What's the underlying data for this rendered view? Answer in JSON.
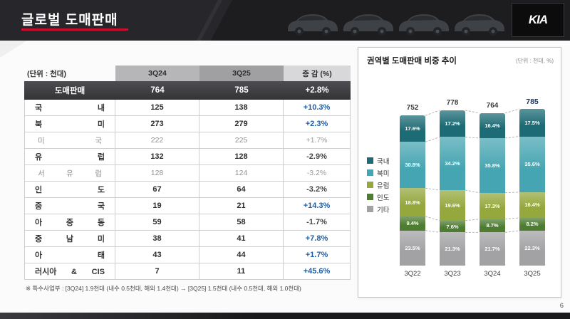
{
  "page": {
    "title": "글로벌 도매판매",
    "page_number": "6",
    "footnote": "※ 특수사업부 : [3Q24] 1.9천대 (내수 0.5천대, 해외 1.4천대) → [3Q25] 1.5천대 (내수 0.5천대, 해외 1.0천대)"
  },
  "header": {
    "brand": "KIA"
  },
  "table": {
    "unit_label": "(단위 : 천대)",
    "columns": [
      "3Q24",
      "3Q25",
      "증 감 (%)"
    ],
    "total_row": {
      "label": "도매판매",
      "q24": "764",
      "q25": "785",
      "chg": "+2.8%"
    },
    "rows": [
      {
        "label": "국 내",
        "q24": "125",
        "q25": "138",
        "chg": "+10.3%",
        "style": "pos"
      },
      {
        "label": "북 미",
        "q24": "273",
        "q25": "279",
        "chg": "+2.3%",
        "style": "pos"
      },
      {
        "label": "미 국",
        "q24": "222",
        "q25": "225",
        "chg": "+1.7%",
        "style": "sub"
      },
      {
        "label": "유 럽",
        "q24": "132",
        "q25": "128",
        "chg": "-2.9%",
        "style": "neg"
      },
      {
        "label": "서 유 럽",
        "q24": "128",
        "q25": "124",
        "chg": "-3.2%",
        "style": "sub"
      },
      {
        "label": "인 도",
        "q24": "67",
        "q25": "64",
        "chg": "-3.2%",
        "style": "neg"
      },
      {
        "label": "중 국",
        "q24": "19",
        "q25": "21",
        "chg": "+14.3%",
        "style": "pos"
      },
      {
        "label": "아 중 동",
        "q24": "59",
        "q25": "58",
        "chg": "-1.7%",
        "style": "neg"
      },
      {
        "label": "중 남 미",
        "q24": "38",
        "q25": "41",
        "chg": "+7.8%",
        "style": "pos"
      },
      {
        "label": "아 태",
        "q24": "43",
        "q25": "44",
        "chg": "+1.7%",
        "style": "pos"
      },
      {
        "label": "러시아 & CIS",
        "q24": "7",
        "q25": "11",
        "chg": "+45.6%",
        "style": "pos"
      }
    ]
  },
  "chart_panel": {
    "title": "권역별 도매판매 비중 추이",
    "unit_label": "(단위 : 천대, %)"
  },
  "chart_data": {
    "type": "bar",
    "stacked": true,
    "title": "권역별 도매판매 비중 추이",
    "unit": "천대, %",
    "legend_position": "left",
    "categories": [
      "3Q22",
      "3Q23",
      "3Q24",
      "3Q25"
    ],
    "totals": [
      752,
      778,
      764,
      785
    ],
    "series": [
      {
        "name": "국내",
        "color": "#1d6b75",
        "values": [
          17.6,
          17.2,
          16.4,
          17.5
        ]
      },
      {
        "name": "북미",
        "color": "#46a5b2",
        "values": [
          30.8,
          34.2,
          35.8,
          35.6
        ]
      },
      {
        "name": "유럽",
        "color": "#94a83e",
        "values": [
          18.8,
          19.6,
          17.3,
          16.4
        ]
      },
      {
        "name": "인도",
        "color": "#4e7c31",
        "values": [
          9.4,
          7.6,
          8.7,
          8.2
        ]
      },
      {
        "name": "기타",
        "color": "#a2a2a4",
        "values": [
          23.5,
          21.3,
          21.7,
          22.3
        ]
      }
    ]
  }
}
